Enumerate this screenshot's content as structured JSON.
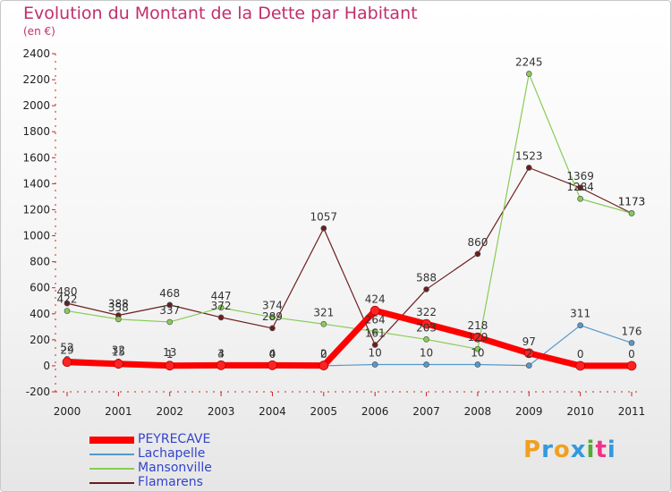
{
  "title": "Evolution du Montant de la Dette par Habitant",
  "subtitle": "(en €)",
  "logo": {
    "letters": [
      "P",
      "r",
      "o",
      "x",
      "i",
      "t",
      "i"
    ],
    "colors": [
      "#f0a020",
      "#3399dd",
      "#f0a020",
      "#3399dd",
      "#55aa33",
      "#ee3388",
      "#3399dd"
    ]
  },
  "chart_data": {
    "type": "line",
    "categories": [
      "2000",
      "2001",
      "2002",
      "2003",
      "2004",
      "2005",
      "2006",
      "2007",
      "2008",
      "2009",
      "2010",
      "2011"
    ],
    "ylim": [
      -200,
      2400
    ],
    "yticks": [
      -200,
      0,
      200,
      400,
      600,
      800,
      1000,
      1200,
      1400,
      1600,
      1800,
      2000,
      2200,
      2400
    ],
    "grid": false,
    "legend": "bottom-left",
    "series": [
      {
        "name": "Flamarens",
        "color": "#6b1d1d",
        "width": 1.2,
        "values": [
          480,
          388,
          468,
          372,
          289,
          1057,
          161,
          588,
          860,
          1523,
          1369,
          1173
        ]
      },
      {
        "name": "Mansonville",
        "color": "#88cc55",
        "width": 1.2,
        "values": [
          422,
          358,
          337,
          447,
          374,
          321,
          264,
          203,
          129,
          2245,
          1284,
          1173
        ]
      },
      {
        "name": "Lachapelle",
        "color": "#5599cc",
        "width": 1.2,
        "values": [
          52,
          32,
          13,
          3,
          0,
          0,
          10,
          10,
          10,
          2,
          311,
          176
        ]
      },
      {
        "name": "PEYRECAVE",
        "color": "#ff0000",
        "width": 7,
        "values": [
          29,
          15,
          1,
          4,
          4,
          2,
          424,
          322,
          218,
          97,
          0,
          0
        ]
      }
    ],
    "data_labels": [
      [
        "480",
        "388",
        "468",
        "372",
        "289",
        "1057",
        "161",
        "588",
        "860",
        "1523",
        "1369",
        "1173"
      ],
      [
        "422",
        "358",
        "337",
        "447",
        "374",
        "321",
        "264",
        "203",
        "129",
        "2245",
        "1284",
        "1173"
      ],
      [
        "52",
        "32",
        "13",
        "3",
        "0",
        "0",
        "10",
        "10",
        "10",
        "2",
        "311",
        "176"
      ],
      [
        "29",
        "15",
        "1",
        "4",
        "4",
        "2",
        "424",
        "322",
        "218",
        "97",
        "0",
        "0"
      ]
    ],
    "legend_order": [
      "PEYRECAVE",
      "Lachapelle",
      "Mansonville",
      "Flamarens"
    ]
  }
}
